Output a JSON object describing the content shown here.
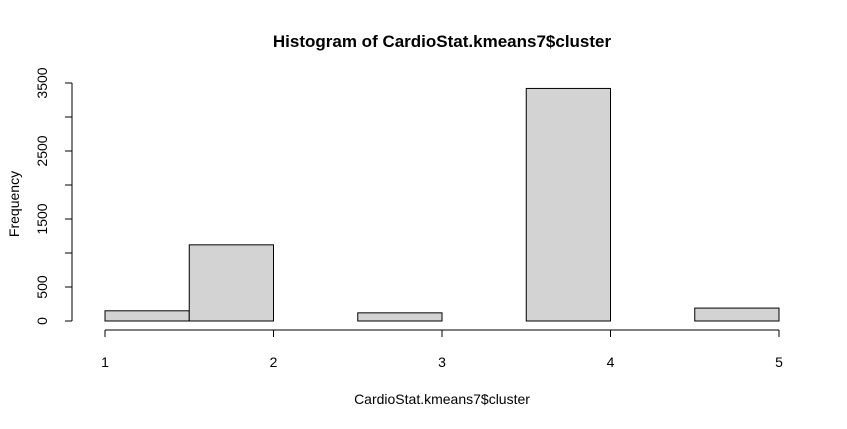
{
  "chart_data": {
    "type": "bar",
    "title": "Histogram of CardioStat.kmeans7$cluster",
    "xlabel": "CardioStat.kmeans7$cluster",
    "ylabel": "Frequency",
    "bins": [
      {
        "start": 1.0,
        "end": 1.5,
        "value": 150
      },
      {
        "start": 1.5,
        "end": 2.0,
        "value": 1120
      },
      {
        "start": 2.0,
        "end": 2.5,
        "value": 0
      },
      {
        "start": 2.5,
        "end": 3.0,
        "value": 120
      },
      {
        "start": 3.0,
        "end": 3.5,
        "value": 0
      },
      {
        "start": 3.5,
        "end": 4.0,
        "value": 3420
      },
      {
        "start": 4.0,
        "end": 4.5,
        "value": 0
      },
      {
        "start": 4.5,
        "end": 5.0,
        "value": 190
      }
    ],
    "x_ticks": [
      1,
      2,
      3,
      4,
      5
    ],
    "y_ticks": [
      0,
      500,
      1500,
      2500,
      3500
    ],
    "y_minor_ticks": [
      1000,
      2000,
      3000
    ],
    "xlim": [
      1,
      5
    ],
    "ylim": [
      0,
      3500
    ],
    "grid": false,
    "legend": "none",
    "colors": {
      "bar_fill": "#d3d3d3",
      "bar_stroke": "#000000"
    }
  }
}
